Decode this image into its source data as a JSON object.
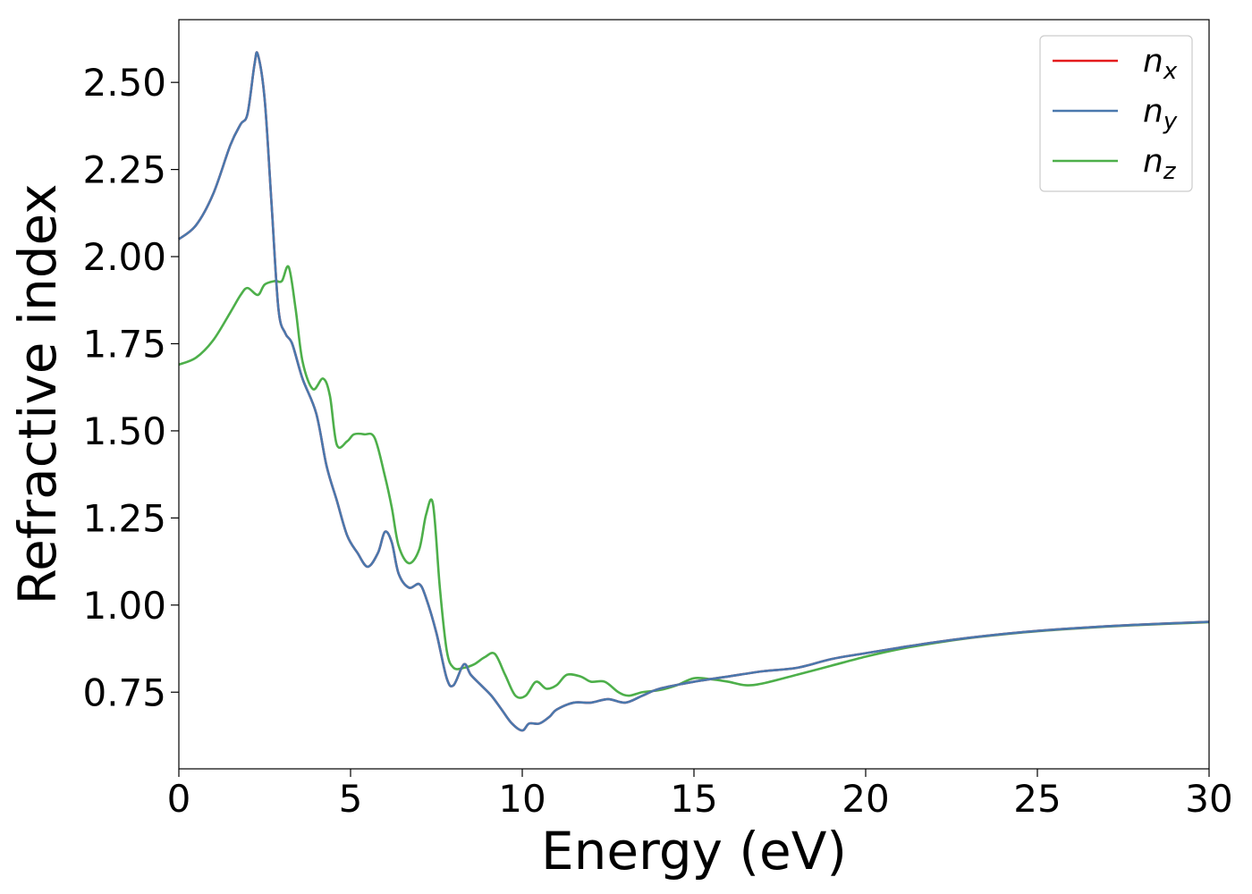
{
  "chart_data": {
    "type": "line",
    "title": "",
    "xlabel": "Energy (eV)",
    "ylabel": "Refractive index",
    "xlim": [
      0,
      30
    ],
    "ylim": [
      0.53,
      2.68
    ],
    "xticks": [
      0,
      5,
      10,
      15,
      20,
      25,
      30
    ],
    "xtick_labels": [
      "0",
      "5",
      "10",
      "15",
      "20",
      "25",
      "30"
    ],
    "yticks": [
      0.75,
      1.0,
      1.25,
      1.5,
      1.75,
      2.0,
      2.25,
      2.5
    ],
    "ytick_labels": [
      "0.75",
      "1.00",
      "1.25",
      "1.50",
      "1.75",
      "2.00",
      "2.25",
      "2.50"
    ],
    "grid": false,
    "legend_position": "top-right",
    "series": [
      {
        "name": "n_x",
        "legend_base": "n",
        "legend_sub": "x",
        "color": "#e41a1c",
        "x": [
          0,
          0.5,
          1.0,
          1.5,
          1.8,
          2.0,
          2.2,
          2.3,
          2.5,
          2.7,
          2.9,
          3.1,
          3.3,
          3.6,
          4.0,
          4.3,
          4.6,
          4.9,
          5.2,
          5.5,
          5.8,
          6.0,
          6.2,
          6.4,
          6.7,
          7.0,
          7.2,
          7.5,
          7.8,
          8.0,
          8.3,
          8.5,
          8.8,
          9.1,
          9.4,
          9.7,
          10.0,
          10.2,
          10.5,
          10.8,
          11.0,
          11.5,
          12.0,
          12.5,
          13.0,
          13.5,
          14.0,
          15.0,
          16.0,
          17.0,
          18.0,
          19.0,
          20.0,
          21.0,
          22.0,
          23.0,
          24.0,
          25.0,
          26.0,
          27.0,
          28.0,
          29.0,
          30.0
        ],
        "values": [
          2.05,
          2.09,
          2.18,
          2.32,
          2.38,
          2.41,
          2.55,
          2.58,
          2.45,
          2.15,
          1.85,
          1.78,
          1.75,
          1.65,
          1.55,
          1.4,
          1.3,
          1.2,
          1.15,
          1.11,
          1.15,
          1.21,
          1.18,
          1.09,
          1.05,
          1.06,
          1.02,
          0.92,
          0.79,
          0.77,
          0.83,
          0.8,
          0.77,
          0.74,
          0.7,
          0.66,
          0.64,
          0.66,
          0.66,
          0.68,
          0.7,
          0.72,
          0.72,
          0.73,
          0.72,
          0.74,
          0.76,
          0.78,
          0.795,
          0.81,
          0.82,
          0.845,
          0.862,
          0.878,
          0.893,
          0.906,
          0.917,
          0.926,
          0.933,
          0.939,
          0.944,
          0.948,
          0.952
        ]
      },
      {
        "name": "n_y",
        "legend_base": "n",
        "legend_sub": "y",
        "color": "#4a78ad",
        "x": [
          0,
          0.5,
          1.0,
          1.5,
          1.8,
          2.0,
          2.2,
          2.3,
          2.5,
          2.7,
          2.9,
          3.1,
          3.3,
          3.6,
          4.0,
          4.3,
          4.6,
          4.9,
          5.2,
          5.5,
          5.8,
          6.0,
          6.2,
          6.4,
          6.7,
          7.0,
          7.2,
          7.5,
          7.8,
          8.0,
          8.3,
          8.5,
          8.8,
          9.1,
          9.4,
          9.7,
          10.0,
          10.2,
          10.5,
          10.8,
          11.0,
          11.5,
          12.0,
          12.5,
          13.0,
          13.5,
          14.0,
          15.0,
          16.0,
          17.0,
          18.0,
          19.0,
          20.0,
          21.0,
          22.0,
          23.0,
          24.0,
          25.0,
          26.0,
          27.0,
          28.0,
          29.0,
          30.0
        ],
        "values": [
          2.05,
          2.09,
          2.18,
          2.32,
          2.38,
          2.41,
          2.55,
          2.58,
          2.45,
          2.15,
          1.85,
          1.78,
          1.75,
          1.65,
          1.55,
          1.4,
          1.3,
          1.2,
          1.15,
          1.11,
          1.15,
          1.21,
          1.18,
          1.09,
          1.05,
          1.06,
          1.02,
          0.92,
          0.79,
          0.77,
          0.83,
          0.8,
          0.77,
          0.74,
          0.7,
          0.66,
          0.64,
          0.66,
          0.66,
          0.68,
          0.7,
          0.72,
          0.72,
          0.73,
          0.72,
          0.74,
          0.76,
          0.78,
          0.795,
          0.81,
          0.82,
          0.845,
          0.862,
          0.878,
          0.893,
          0.906,
          0.917,
          0.926,
          0.933,
          0.939,
          0.944,
          0.948,
          0.952
        ]
      },
      {
        "name": "n_z",
        "legend_base": "n",
        "legend_sub": "z",
        "color": "#4daf4a",
        "x": [
          0,
          0.5,
          1.0,
          1.5,
          1.8,
          2.0,
          2.3,
          2.5,
          2.8,
          3.0,
          3.2,
          3.4,
          3.6,
          3.9,
          4.2,
          4.4,
          4.6,
          4.9,
          5.1,
          5.4,
          5.7,
          6.0,
          6.2,
          6.4,
          6.7,
          7.0,
          7.2,
          7.4,
          7.6,
          7.8,
          8.0,
          8.3,
          8.6,
          8.9,
          9.2,
          9.5,
          9.8,
          10.1,
          10.4,
          10.7,
          11.0,
          11.3,
          11.7,
          12.0,
          12.4,
          12.8,
          13.1,
          13.5,
          14.0,
          14.5,
          15.0,
          15.5,
          16.0,
          16.5,
          17.0,
          18.0,
          19.0,
          20.0,
          21.0,
          22.0,
          23.0,
          24.0,
          25.0,
          26.0,
          27.0,
          28.0,
          29.0,
          30.0
        ],
        "values": [
          1.69,
          1.71,
          1.76,
          1.84,
          1.89,
          1.91,
          1.89,
          1.92,
          1.93,
          1.93,
          1.97,
          1.85,
          1.7,
          1.62,
          1.65,
          1.6,
          1.46,
          1.47,
          1.49,
          1.49,
          1.48,
          1.37,
          1.28,
          1.17,
          1.12,
          1.16,
          1.26,
          1.29,
          1.05,
          0.87,
          0.82,
          0.82,
          0.83,
          0.85,
          0.86,
          0.8,
          0.74,
          0.74,
          0.78,
          0.76,
          0.77,
          0.8,
          0.795,
          0.78,
          0.78,
          0.75,
          0.74,
          0.75,
          0.756,
          0.77,
          0.79,
          0.787,
          0.78,
          0.77,
          0.775,
          0.8,
          0.826,
          0.852,
          0.874,
          0.891,
          0.905,
          0.916,
          0.925,
          0.932,
          0.938,
          0.943,
          0.947,
          0.951
        ]
      }
    ]
  }
}
